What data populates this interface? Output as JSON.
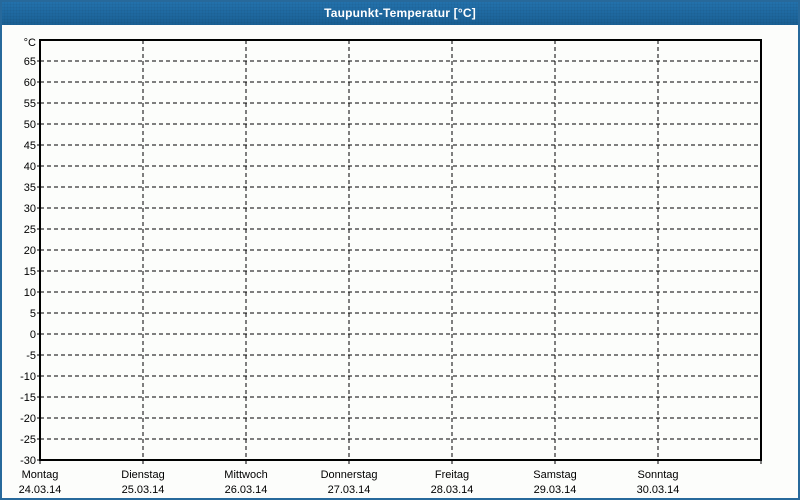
{
  "window": {
    "title": "Taupunkt-Temperatur [°C]",
    "colors": {
      "titlebar_top": "#2473AE",
      "titlebar_bottom": "#1A6094",
      "border": "#27699B",
      "content_bg": "#FCFDFB",
      "grid": "#000000",
      "title_text": "#FFFFFF"
    }
  },
  "chart_data": {
    "type": "line",
    "title": "Taupunkt-Temperatur [°C]",
    "ylabel": "°C",
    "xlabel": "",
    "y_axis": {
      "unit_label": "°C",
      "min": -30,
      "max": 70,
      "tick_step": 5,
      "ticks": [
        65,
        60,
        55,
        50,
        45,
        40,
        35,
        30,
        25,
        20,
        15,
        10,
        5,
        0,
        -5,
        -10,
        -15,
        -20,
        -25,
        -30
      ]
    },
    "x_axis": {
      "categories": [
        {
          "day": "Montag",
          "date": "24.03.14"
        },
        {
          "day": "Dienstag",
          "date": "25.03.14"
        },
        {
          "day": "Mittwoch",
          "date": "26.03.14"
        },
        {
          "day": "Donnerstag",
          "date": "27.03.14"
        },
        {
          "day": "Freitag",
          "date": "28.03.14"
        },
        {
          "day": "Samstag",
          "date": "29.03.14"
        },
        {
          "day": "Sonntag",
          "date": "30.03.14"
        }
      ]
    },
    "series": [],
    "note": "empty plot - no data series drawn",
    "grid": {
      "horizontal": "dashed",
      "vertical": "dashed",
      "style": "black 1px, dash 4 gap 3"
    },
    "legend": "none"
  }
}
